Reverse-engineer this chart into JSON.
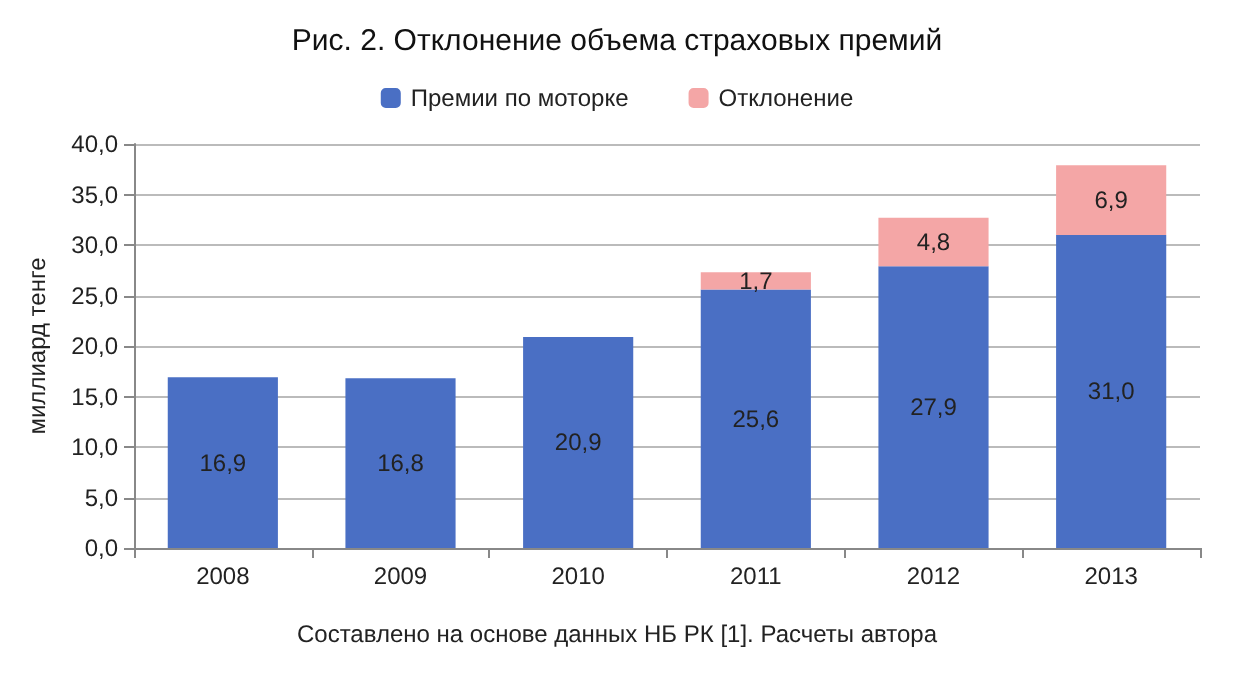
{
  "chart_data": {
    "type": "bar",
    "title": "Рис. 2. Отклонение объема страховых премий",
    "ylabel": "миллиард тенге",
    "annotations": [
      "Составлено на основе данных НБ РК [1]. Расчеты автора"
    ],
    "categories": [
      "2008",
      "2009",
      "2010",
      "2011",
      "2012",
      "2013"
    ],
    "stacked": true,
    "series": [
      {
        "name": "Премии по моторке",
        "color": "#4a6fc4",
        "values": [
          16.9,
          16.8,
          20.9,
          25.6,
          27.9,
          31.0
        ],
        "value_labels": [
          "16,9",
          "16,8",
          "20,9",
          "25,6",
          "27,9",
          "31,0"
        ]
      },
      {
        "name": "Отклонение",
        "color": "#f4a6a6",
        "values": [
          null,
          null,
          null,
          1.7,
          4.8,
          6.9
        ],
        "value_labels": [
          null,
          null,
          null,
          "1,7",
          "4,8",
          "6,9"
        ]
      }
    ],
    "ylim": [
      0,
      40
    ],
    "yticks": [
      {
        "value": 0,
        "label": "0,0"
      },
      {
        "value": 5,
        "label": "5,0"
      },
      {
        "value": 10,
        "label": "10,0"
      },
      {
        "value": 15,
        "label": "15,0"
      },
      {
        "value": 20,
        "label": "20,0"
      },
      {
        "value": 25,
        "label": "25,0"
      },
      {
        "value": 30,
        "label": "30,0"
      },
      {
        "value": 35,
        "label": "35,0"
      },
      {
        "value": 40,
        "label": "40,0"
      }
    ],
    "grid": "y",
    "legend": "top"
  }
}
